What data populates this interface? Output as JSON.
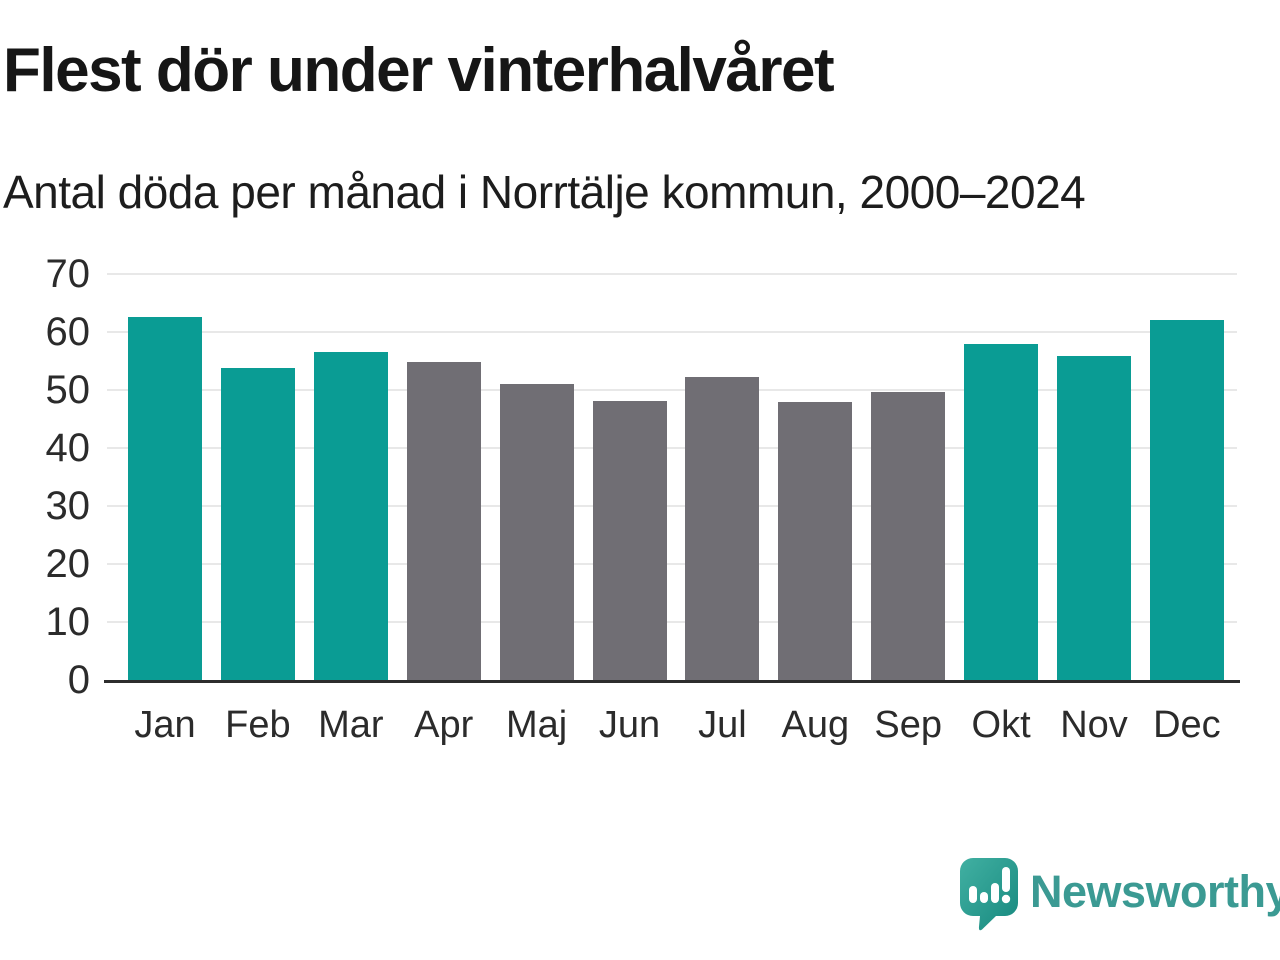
{
  "header": {
    "title": "Flest dör under vinterhalvåret",
    "subtitle": "Antal döda per månad i Norrtälje kommun, 2000–2024"
  },
  "chart_data": {
    "type": "bar",
    "title": "Flest dör under vinterhalvåret",
    "subtitle": "Antal döda per månad i Norrtälje kommun, 2000–2024",
    "categories": [
      "Jan",
      "Feb",
      "Mar",
      "Apr",
      "Maj",
      "Jun",
      "Jul",
      "Aug",
      "Sep",
      "Okt",
      "Nov",
      "Dec"
    ],
    "values": [
      62.6,
      53.8,
      56.6,
      54.8,
      51.0,
      48.1,
      52.3,
      47.9,
      49.7,
      57.9,
      55.9,
      62.0
    ],
    "bar_color_keys": [
      "teal",
      "teal",
      "teal",
      "gray",
      "gray",
      "gray",
      "gray",
      "gray",
      "gray",
      "teal",
      "teal",
      "teal"
    ],
    "colors": {
      "teal": "#0a9c94",
      "gray": "#706e74"
    },
    "xlabel": "",
    "ylabel": "",
    "ylim": [
      0,
      70
    ],
    "yticks": [
      0,
      10,
      20,
      30,
      40,
      50,
      60,
      70
    ],
    "grid": "horizontal-light",
    "legend": "none",
    "gridline_color": "#e8e8e8",
    "axis_line_color": "#2d2d2d",
    "tick_label_color": "#2b2b2b"
  },
  "branding": {
    "wordmark": "Newsworthy",
    "logo_icon": "newsworthy-speech-bubble-bar-chart-icon",
    "wordmark_color": "#3b9a93",
    "logo_gradient_start": "#41b0a2",
    "logo_gradient_end": "#17897f"
  }
}
